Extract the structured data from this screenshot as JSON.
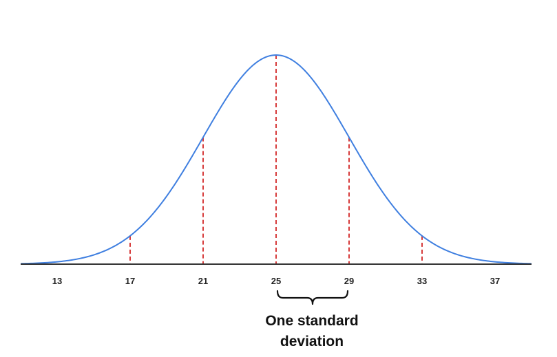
{
  "chart_data": {
    "type": "line",
    "distribution": "normal",
    "mean": 25,
    "std_dev": 4,
    "xlim": [
      11,
      39
    ],
    "x_ticks": [
      13,
      17,
      21,
      25,
      29,
      33,
      37
    ],
    "tick_labels": [
      "13",
      "17",
      "21",
      "25",
      "29",
      "33",
      "37"
    ],
    "marker_lines_at": [
      17,
      21,
      25,
      29,
      33
    ],
    "brace_range": [
      25,
      29
    ],
    "annotation_lines": [
      "One standard",
      "deviation"
    ],
    "title": "",
    "xlabel": "",
    "ylabel": "",
    "grid": false
  },
  "colors": {
    "curve": "#3f7fe0",
    "marker_lines": "#d63a3a",
    "axis": "#333333",
    "brace": "#111111"
  }
}
